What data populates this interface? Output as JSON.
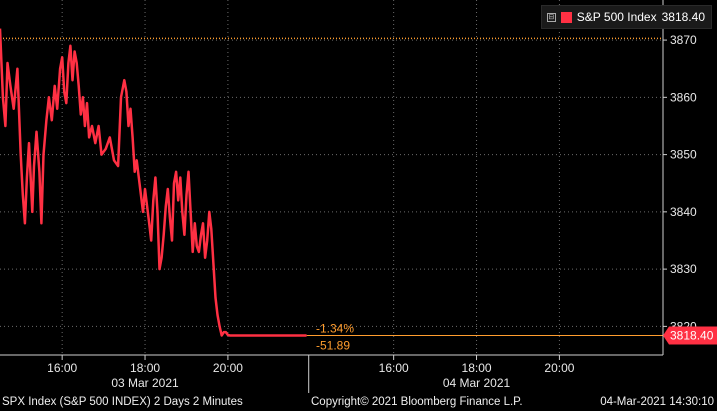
{
  "legend": {
    "toggle": "⊟",
    "label": "S&P 500 Index",
    "value": "3818.40"
  },
  "last_price_tag": "3818.40",
  "change_pct": "-1.34%",
  "change_abs": "-51.89",
  "footer": {
    "left": "SPX Index (S&P 500 INDEX) 2 Days 2 Minutes",
    "center": "Copyright© 2021 Bloomberg Finance L.P.",
    "right": "04-Mar-2021 14:30:10"
  },
  "colors": {
    "background": "#000000",
    "series": "#ff3043",
    "reference": "#ff9d2e",
    "grid": "#6b6b6b"
  },
  "chart_data": {
    "type": "line",
    "y_ticks": [
      "3820",
      "3830",
      "3840",
      "3850",
      "3860",
      "3870"
    ],
    "ylim": [
      3815,
      3877
    ],
    "x_ticks": [
      {
        "t": 16.0,
        "label": "16:00"
      },
      {
        "t": 18.0,
        "label": "18:00"
      },
      {
        "t": 20.0,
        "label": "20:00"
      },
      {
        "t": 24.0,
        "label": "16:00"
      },
      {
        "t": 26.0,
        "label": "18:00"
      },
      {
        "t": 28.0,
        "label": "20:00"
      }
    ],
    "xlim": [
      14.5,
      30.5
    ],
    "days": [
      {
        "label": "03 Mar 2021",
        "center": 18.0
      },
      {
        "label": "04 Mar 2021",
        "center": 26.0
      }
    ],
    "day_separator": 21.95,
    "reference_level": 3870.3,
    "last_price": 3818.4,
    "grid": true,
    "series": [
      {
        "name": "S&P 500 Index",
        "x": [
          14.5,
          14.57,
          14.63,
          14.68,
          14.75,
          14.83,
          14.92,
          15.0,
          15.05,
          15.1,
          15.15,
          15.2,
          15.28,
          15.32,
          15.38,
          15.45,
          15.5,
          15.55,
          15.62,
          15.68,
          15.75,
          15.82,
          15.88,
          15.95,
          16.0,
          16.05,
          16.1,
          16.15,
          16.2,
          16.25,
          16.3,
          16.35,
          16.4,
          16.45,
          16.5,
          16.55,
          16.6,
          16.65,
          16.72,
          16.8,
          16.88,
          16.95,
          17.05,
          17.15,
          17.25,
          17.35,
          17.42,
          17.5,
          17.55,
          17.6,
          17.65,
          17.7,
          17.75,
          17.8,
          17.85,
          17.9,
          17.95,
          18.0,
          18.05,
          18.1,
          18.15,
          18.2,
          18.25,
          18.3,
          18.35,
          18.4,
          18.45,
          18.5,
          18.55,
          18.6,
          18.65,
          18.7,
          18.75,
          18.8,
          18.85,
          18.9,
          18.95,
          19.0,
          19.05,
          19.1,
          19.15,
          19.2,
          19.25,
          19.3,
          19.35,
          19.4,
          19.45,
          19.5,
          19.55,
          19.6,
          19.65,
          19.7,
          19.75,
          19.8,
          19.85,
          19.9,
          19.95,
          20.0,
          20.05,
          20.1,
          20.15,
          20.2,
          20.25,
          20.3,
          20.35,
          20.4,
          20.45,
          20.5,
          20.55,
          20.6,
          20.65,
          20.7,
          20.75,
          20.8,
          20.85,
          20.9,
          20.95,
          21.0,
          21.05,
          21.1,
          21.15,
          21.2,
          21.28,
          21.35,
          21.45,
          21.55,
          21.62,
          21.7,
          21.78,
          21.85,
          21.9
        ],
        "y": [
          3872,
          3860,
          3855,
          3866,
          3862,
          3858,
          3865,
          3850,
          3843,
          3838,
          3846,
          3852,
          3840,
          3848,
          3854,
          3847,
          3838,
          3850,
          3856,
          3860,
          3856,
          3862,
          3858,
          3865,
          3867,
          3861,
          3859,
          3866,
          3869,
          3863,
          3868,
          3866,
          3862,
          3857,
          3860,
          3855,
          3859,
          3853,
          3855,
          3852,
          3855,
          3850,
          3851,
          3853,
          3849,
          3848,
          3860,
          3863,
          3861,
          3855,
          3858,
          3853,
          3847,
          3849,
          3846,
          3843,
          3840,
          3844,
          3841,
          3838,
          3835,
          3842,
          3846,
          3840,
          3830,
          3832,
          3836,
          3841,
          3844,
          3839,
          3835,
          3845,
          3847,
          3842,
          3846,
          3840,
          3836,
          3843,
          3847,
          3840,
          3833,
          3838,
          3834,
          3833,
          3836,
          3838,
          3832,
          3835,
          3840,
          3837,
          3831,
          3825,
          3822,
          3820,
          3818.4,
          3819,
          3819,
          3818.5,
          3818.4,
          3818.4,
          3818.4,
          3818.4,
          3818.4,
          3818.4,
          3818.4,
          3818.4,
          3818.4,
          3818.4,
          3818.4,
          3818.4,
          3818.4,
          3818.4,
          3818.4,
          3818.4,
          3818.4,
          3818.4,
          3818.4,
          3818.4,
          3818.4,
          3818.4,
          3818.4,
          3818.4,
          3818.4,
          3818.4,
          3818.4,
          3818.4,
          3818.4,
          3818.4,
          3818.4,
          3818.4,
          3818.4
        ]
      }
    ]
  }
}
